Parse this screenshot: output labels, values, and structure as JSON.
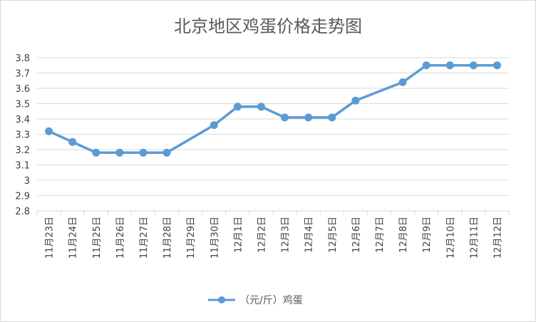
{
  "chart_data": {
    "type": "line",
    "title": "北京地区鸡蛋价格走势图",
    "categories": [
      "11月23日",
      "11月24日",
      "11月25日",
      "11月26日",
      "11月27日",
      "11月28日",
      "11月29日",
      "11月30日",
      "12月1日",
      "12月2日",
      "12月3日",
      "12月4日",
      "12月5日",
      "12月6日",
      "12月7日",
      "12月8日",
      "12月9日",
      "12月10日",
      "12月11日",
      "12月12日"
    ],
    "series": [
      {
        "name": "（元/斤）鸡蛋",
        "values": [
          3.32,
          3.25,
          3.18,
          3.18,
          3.18,
          3.18,
          null,
          3.36,
          3.48,
          3.48,
          3.41,
          3.41,
          3.41,
          3.52,
          null,
          3.64,
          3.75,
          3.75,
          3.75,
          3.75
        ],
        "color": "#5b9bd5"
      }
    ],
    "ylim": [
      2.8,
      3.8
    ],
    "yticks": [
      2.8,
      2.9,
      3,
      3.1,
      3.2,
      3.3,
      3.4,
      3.5,
      3.6,
      3.7,
      3.8
    ],
    "ytick_labels": [
      "2.8",
      "2.9",
      "3",
      "3.1",
      "3.2",
      "3.3",
      "3.4",
      "3.5",
      "3.6",
      "3.7",
      "3.8"
    ],
    "grid": true,
    "legend": "bottom",
    "xlabel": "",
    "ylabel": ""
  }
}
